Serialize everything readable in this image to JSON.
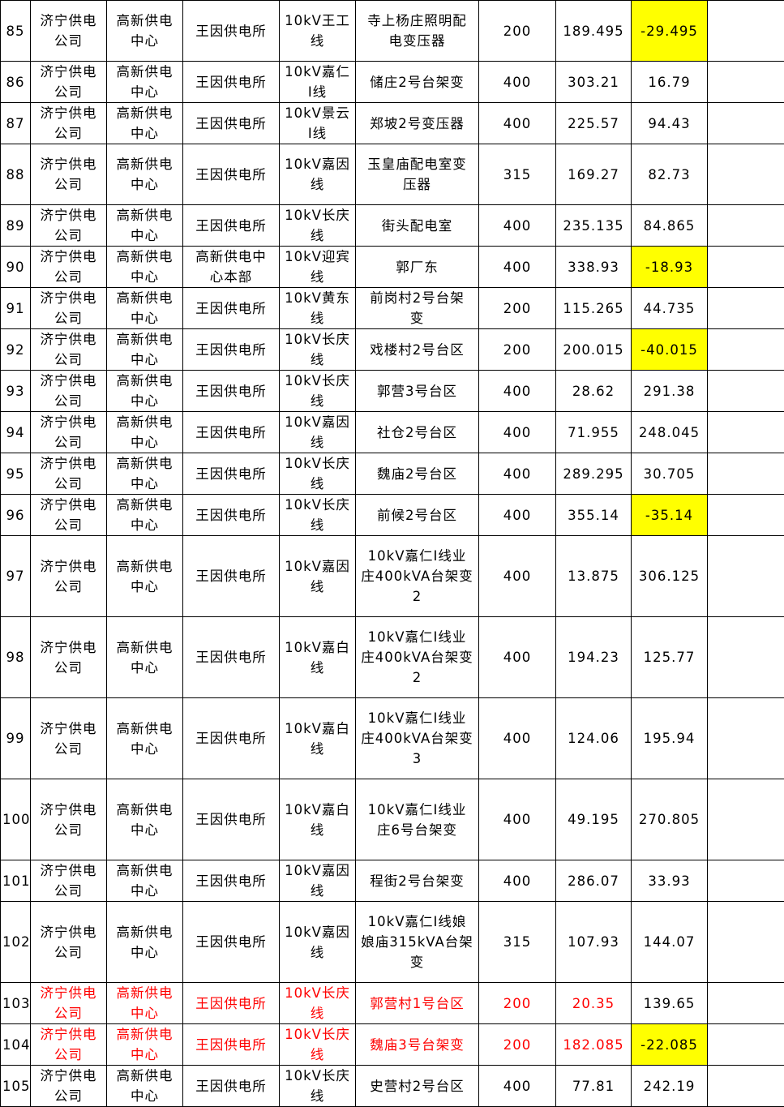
{
  "highlight_color": "#ffff00",
  "alert_text_color": "#ff0000",
  "rows": [
    {
      "no": "85",
      "company": "济宁供电\n公司",
      "center": "高新供电\n中心",
      "station": "王因供电所",
      "line": "10kV王工\n线",
      "name": "寺上杨庄照明配\n电变压器",
      "capacity": "200",
      "load": "189.495",
      "remain": "-29.495",
      "highlight": true,
      "red": false
    },
    {
      "no": "86",
      "company": "济宁供电\n公司",
      "center": "高新供电\n中心",
      "station": "王因供电所",
      "line": "10kV嘉仁\nⅠ线",
      "name": "储庄2号台架变",
      "capacity": "400",
      "load": "303.21",
      "remain": "16.79",
      "highlight": false,
      "red": false
    },
    {
      "no": "87",
      "company": "济宁供电\n公司",
      "center": "高新供电\n中心",
      "station": "王因供电所",
      "line": "10kV景云\nⅠ线",
      "name": "郑坡2号变压器",
      "capacity": "400",
      "load": "225.57",
      "remain": "94.43",
      "highlight": false,
      "red": false
    },
    {
      "no": "88",
      "company": "济宁供电\n公司",
      "center": "高新供电\n中心",
      "station": "王因供电所",
      "line": "10kV嘉因\n线",
      "name": "玉皇庙配电室变\n压器",
      "capacity": "315",
      "load": "169.27",
      "remain": "82.73",
      "highlight": false,
      "red": false
    },
    {
      "no": "89",
      "company": "济宁供电\n公司",
      "center": "高新供电\n中心",
      "station": "王因供电所",
      "line": "10kV长庆\n线",
      "name": "街头配电室",
      "capacity": "400",
      "load": "235.135",
      "remain": "84.865",
      "highlight": false,
      "red": false
    },
    {
      "no": "90",
      "company": "济宁供电\n公司",
      "center": "高新供电\n中心",
      "station": "高新供电中\n心本部",
      "line": "10kV迎宾\n线",
      "name": "郭厂东",
      "capacity": "400",
      "load": "338.93",
      "remain": "-18.93",
      "highlight": true,
      "red": false
    },
    {
      "no": "91",
      "company": "济宁供电\n公司",
      "center": "高新供电\n中心",
      "station": "王因供电所",
      "line": "10kV黄东\n线",
      "name": "前岗村2号台架\n变",
      "capacity": "200",
      "load": "115.265",
      "remain": "44.735",
      "highlight": false,
      "red": false
    },
    {
      "no": "92",
      "company": "济宁供电\n公司",
      "center": "高新供电\n中心",
      "station": "王因供电所",
      "line": "10kV长庆\n线",
      "name": "戏楼村2号台区",
      "capacity": "200",
      "load": "200.015",
      "remain": "-40.015",
      "highlight": true,
      "red": false
    },
    {
      "no": "93",
      "company": "济宁供电\n公司",
      "center": "高新供电\n中心",
      "station": "王因供电所",
      "line": "10kV长庆\n线",
      "name": "郭营3号台区",
      "capacity": "400",
      "load": "28.62",
      "remain": "291.38",
      "highlight": false,
      "red": false
    },
    {
      "no": "94",
      "company": "济宁供电\n公司",
      "center": "高新供电\n中心",
      "station": "王因供电所",
      "line": "10kV嘉因\n线",
      "name": "社仓2号台区",
      "capacity": "400",
      "load": "71.955",
      "remain": "248.045",
      "highlight": false,
      "red": false
    },
    {
      "no": "95",
      "company": "济宁供电\n公司",
      "center": "高新供电\n中心",
      "station": "王因供电所",
      "line": "10kV长庆\n线",
      "name": "魏庙2号台区",
      "capacity": "400",
      "load": "289.295",
      "remain": "30.705",
      "highlight": false,
      "red": false
    },
    {
      "no": "96",
      "company": "济宁供电\n公司",
      "center": "高新供电\n中心",
      "station": "王因供电所",
      "line": "10kV长庆\n线",
      "name": "前候2号台区",
      "capacity": "400",
      "load": "355.14",
      "remain": "-35.14",
      "highlight": true,
      "red": false
    },
    {
      "no": "97",
      "company": "济宁供电\n公司",
      "center": "高新供电\n中心",
      "station": "王因供电所",
      "line": "10kV嘉因\n线",
      "name": "10kV嘉仁Ⅰ线业\n庄400kVA台架变\n2",
      "capacity": "400",
      "load": "13.875",
      "remain": "306.125",
      "highlight": false,
      "red": false
    },
    {
      "no": "98",
      "company": "济宁供电\n公司",
      "center": "高新供电\n中心",
      "station": "王因供电所",
      "line": "10kV嘉白\n线",
      "name": "10kV嘉仁Ⅰ线业\n庄400kVA台架变\n2",
      "capacity": "400",
      "load": "194.23",
      "remain": "125.77",
      "highlight": false,
      "red": false
    },
    {
      "no": "99",
      "company": "济宁供电\n公司",
      "center": "高新供电\n中心",
      "station": "王因供电所",
      "line": "10kV嘉白\n线",
      "name": "10kV嘉仁Ⅰ线业\n庄400kVA台架变\n3",
      "capacity": "400",
      "load": "124.06",
      "remain": "195.94",
      "highlight": false,
      "red": false
    },
    {
      "no": "100",
      "company": "济宁供电\n公司",
      "center": "高新供电\n中心",
      "station": "王因供电所",
      "line": "10kV嘉白\n线",
      "name": "10kV嘉仁Ⅰ线业\n庄6号台架变",
      "capacity": "400",
      "load": "49.195",
      "remain": "270.805",
      "highlight": false,
      "red": false
    },
    {
      "no": "101",
      "company": "济宁供电\n公司",
      "center": "高新供电\n中心",
      "station": "王因供电所",
      "line": "10kV嘉因\n线",
      "name": "程街2号台架变",
      "capacity": "400",
      "load": "286.07",
      "remain": "33.93",
      "highlight": false,
      "red": false
    },
    {
      "no": "102",
      "company": "济宁供电\n公司",
      "center": "高新供电\n中心",
      "station": "王因供电所",
      "line": "10kV嘉因\n线",
      "name": "10kV嘉仁Ⅰ线娘\n娘庙315kVA台架\n变",
      "capacity": "315",
      "load": "107.93",
      "remain": "144.07",
      "highlight": false,
      "red": false
    },
    {
      "no": "103",
      "company": "济宁供电\n公司",
      "center": "高新供电\n中心",
      "station": "王因供电所",
      "line": "10kV长庆\n线",
      "name": "郭营村1号台区",
      "capacity": "200",
      "load": "20.35",
      "remain": "139.65",
      "highlight": false,
      "red": true
    },
    {
      "no": "104",
      "company": "济宁供电\n公司",
      "center": "高新供电\n中心",
      "station": "王因供电所",
      "line": "10kV长庆\n线",
      "name": "魏庙3号台架变",
      "capacity": "200",
      "load": "182.085",
      "remain": "-22.085",
      "highlight": true,
      "red": true
    },
    {
      "no": "105",
      "company": "济宁供电\n公司",
      "center": "高新供电\n中心",
      "station": "王因供电所",
      "line": "10kV长庆\n线",
      "name": "史营村2号台区",
      "capacity": "400",
      "load": "77.81",
      "remain": "242.19",
      "highlight": false,
      "red": false
    }
  ]
}
